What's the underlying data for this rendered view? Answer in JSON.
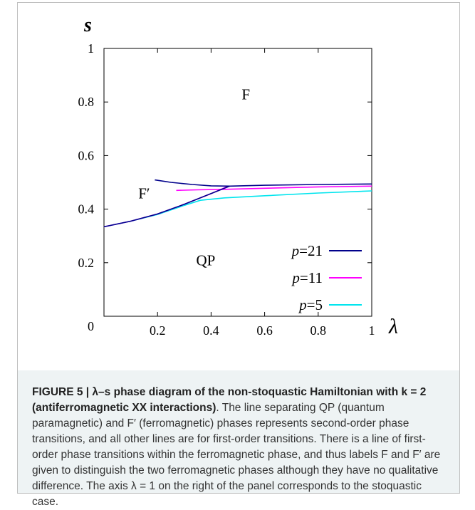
{
  "chart_data": {
    "type": "line",
    "xlabel": "λ",
    "ylabel": "s",
    "xlim": [
      0,
      1
    ],
    "ylim": [
      0,
      1
    ],
    "x_ticks": [
      "0.2",
      "0.4",
      "0.6",
      "0.8",
      "1"
    ],
    "y_ticks": [
      "0",
      "0.2",
      "0.4",
      "0.6",
      "0.8",
      "1"
    ],
    "phase_labels": [
      "F",
      "F′",
      "QP"
    ],
    "legend_position": "bottom-right",
    "series": [
      {
        "name": "p=21",
        "color": "#00008b",
        "segments": [
          {
            "x": [
              0.19,
              0.25,
              0.33,
              0.4,
              0.47,
              0.6,
              0.8,
              1.0
            ],
            "y": [
              0.509,
              0.5,
              0.492,
              0.487,
              0.486,
              0.489,
              0.492,
              0.494
            ]
          },
          {
            "x": [
              0.0,
              0.1,
              0.2,
              0.3,
              0.4,
              0.47
            ],
            "y": [
              0.334,
              0.355,
              0.382,
              0.418,
              0.458,
              0.486
            ]
          }
        ]
      },
      {
        "name": "p=11",
        "color": "#ff00ff",
        "segments": [
          {
            "x": [
              0.27,
              0.35,
              0.45,
              0.6,
              0.8,
              1.0
            ],
            "y": [
              0.47,
              0.472,
              0.474,
              0.478,
              0.483,
              0.486
            ]
          },
          {
            "x": [
              0.0,
              0.1,
              0.2,
              0.3,
              0.4,
              0.46
            ],
            "y": [
              0.334,
              0.355,
              0.382,
              0.418,
              0.458,
              0.484
            ]
          }
        ]
      },
      {
        "name": "p=5",
        "color": "#00e5ee",
        "segments": [
          {
            "x": [
              0.0,
              0.1,
              0.2,
              0.3,
              0.36,
              0.45,
              0.6,
              0.8,
              1.0
            ],
            "y": [
              0.334,
              0.355,
              0.38,
              0.414,
              0.433,
              0.442,
              0.45,
              0.46,
              0.468
            ]
          }
        ]
      }
    ]
  },
  "caption": {
    "figure_label": "FIGURE 5 | λ–s phase diagram of the non-stoquastic Hamiltonian with k = 2 (antiferromagnetic XX interactions)",
    "text": ". The line separating QP (quantum paramagnetic) and F′ (ferromagnetic) phases represents second-order phase transitions, and all other lines are for first-order transitions. There is a line of first-order phase transitions within the ferromagnetic phase, and thus labels F and F′ are given to distinguish the two ferromagnetic phases although they have no qualitative difference. The axis λ = 1 on the right of the panel corresponds to the stoquastic case."
  }
}
